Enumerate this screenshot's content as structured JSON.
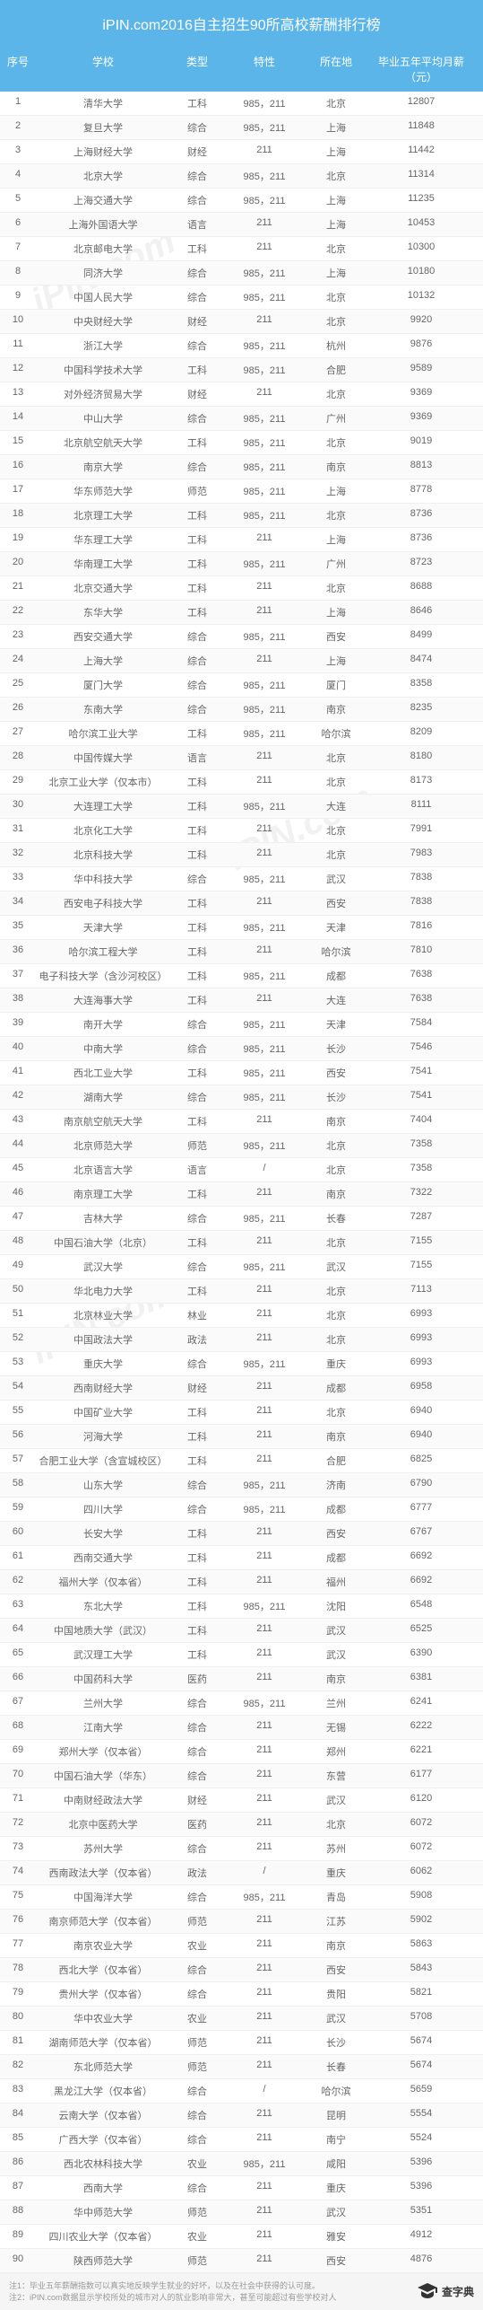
{
  "title": "iPIN.com2016自主招生90所高校薪酬排行榜",
  "watermark_text": "iPIN.com",
  "headers": {
    "rank": "序号",
    "school": "学校",
    "type": "类型",
    "feature": "特性",
    "location": "所在地",
    "salary": "毕业五年平均月薪（元）"
  },
  "footer": {
    "note1": "注1：毕业五年薪酬指数可以真实地反映学生就业的好坏，以及在社会中获得的认可度。",
    "note2": "注2：iPIN.com数据显示学校所处的城市对人的就业影响非常大，甚至可能超过有些学校对人",
    "brand": "查字典",
    "sub": "www.chazidian.com"
  },
  "rows": [
    {
      "r": "1",
      "s": "清华大学",
      "t": "工科",
      "f": "985，211",
      "l": "北京",
      "sal": "12807"
    },
    {
      "r": "2",
      "s": "复旦大学",
      "t": "综合",
      "f": "985，211",
      "l": "上海",
      "sal": "11848"
    },
    {
      "r": "3",
      "s": "上海财经大学",
      "t": "财经",
      "f": "211",
      "l": "上海",
      "sal": "11442"
    },
    {
      "r": "4",
      "s": "北京大学",
      "t": "综合",
      "f": "985，211",
      "l": "北京",
      "sal": "11314"
    },
    {
      "r": "5",
      "s": "上海交通大学",
      "t": "综合",
      "f": "985，211",
      "l": "上海",
      "sal": "11235"
    },
    {
      "r": "6",
      "s": "上海外国语大学",
      "t": "语言",
      "f": "211",
      "l": "上海",
      "sal": "10453"
    },
    {
      "r": "7",
      "s": "北京邮电大学",
      "t": "工科",
      "f": "211",
      "l": "北京",
      "sal": "10300"
    },
    {
      "r": "8",
      "s": "同济大学",
      "t": "综合",
      "f": "985，211",
      "l": "上海",
      "sal": "10180"
    },
    {
      "r": "9",
      "s": "中国人民大学",
      "t": "综合",
      "f": "985，211",
      "l": "北京",
      "sal": "10132"
    },
    {
      "r": "10",
      "s": "中央财经大学",
      "t": "财经",
      "f": "211",
      "l": "北京",
      "sal": "9920"
    },
    {
      "r": "11",
      "s": "浙江大学",
      "t": "综合",
      "f": "985，211",
      "l": "杭州",
      "sal": "9876"
    },
    {
      "r": "12",
      "s": "中国科学技术大学",
      "t": "工科",
      "f": "985，211",
      "l": "合肥",
      "sal": "9589"
    },
    {
      "r": "13",
      "s": "对外经济贸易大学",
      "t": "财经",
      "f": "211",
      "l": "北京",
      "sal": "9369"
    },
    {
      "r": "14",
      "s": "中山大学",
      "t": "综合",
      "f": "985，211",
      "l": "广州",
      "sal": "9369"
    },
    {
      "r": "15",
      "s": "北京航空航天大学",
      "t": "工科",
      "f": "985，211",
      "l": "北京",
      "sal": "9019"
    },
    {
      "r": "16",
      "s": "南京大学",
      "t": "综合",
      "f": "985，211",
      "l": "南京",
      "sal": "8813"
    },
    {
      "r": "17",
      "s": "华东师范大学",
      "t": "师范",
      "f": "985，211",
      "l": "上海",
      "sal": "8778"
    },
    {
      "r": "18",
      "s": "北京理工大学",
      "t": "工科",
      "f": "985，211",
      "l": "北京",
      "sal": "8736"
    },
    {
      "r": "19",
      "s": "华东理工大学",
      "t": "工科",
      "f": "211",
      "l": "上海",
      "sal": "8736"
    },
    {
      "r": "20",
      "s": "华南理工大学",
      "t": "工科",
      "f": "985，211",
      "l": "广州",
      "sal": "8723"
    },
    {
      "r": "21",
      "s": "北京交通大学",
      "t": "工科",
      "f": "211",
      "l": "北京",
      "sal": "8688"
    },
    {
      "r": "22",
      "s": "东华大学",
      "t": "工科",
      "f": "211",
      "l": "上海",
      "sal": "8646"
    },
    {
      "r": "23",
      "s": "西安交通大学",
      "t": "综合",
      "f": "985，211",
      "l": "西安",
      "sal": "8499"
    },
    {
      "r": "24",
      "s": "上海大学",
      "t": "综合",
      "f": "211",
      "l": "上海",
      "sal": "8474"
    },
    {
      "r": "25",
      "s": "厦门大学",
      "t": "综合",
      "f": "985，211",
      "l": "厦门",
      "sal": "8358"
    },
    {
      "r": "26",
      "s": "东南大学",
      "t": "综合",
      "f": "985，211",
      "l": "南京",
      "sal": "8235"
    },
    {
      "r": "27",
      "s": "哈尔滨工业大学",
      "t": "工科",
      "f": "985，211",
      "l": "哈尔滨",
      "sal": "8209"
    },
    {
      "r": "28",
      "s": "中国传媒大学",
      "t": "语言",
      "f": "211",
      "l": "北京",
      "sal": "8180"
    },
    {
      "r": "29",
      "s": "北京工业大学（仅本市）",
      "t": "工科",
      "f": "211",
      "l": "北京",
      "sal": "8173"
    },
    {
      "r": "30",
      "s": "大连理工大学",
      "t": "工科",
      "f": "985，211",
      "l": "大连",
      "sal": "8111"
    },
    {
      "r": "31",
      "s": "北京化工大学",
      "t": "工科",
      "f": "211",
      "l": "北京",
      "sal": "7991"
    },
    {
      "r": "32",
      "s": "北京科技大学",
      "t": "工科",
      "f": "211",
      "l": "北京",
      "sal": "7983"
    },
    {
      "r": "33",
      "s": "华中科技大学",
      "t": "综合",
      "f": "985，211",
      "l": "武汉",
      "sal": "7838"
    },
    {
      "r": "34",
      "s": "西安电子科技大学",
      "t": "工科",
      "f": "211",
      "l": "西安",
      "sal": "7838"
    },
    {
      "r": "35",
      "s": "天津大学",
      "t": "工科",
      "f": "985，211",
      "l": "天津",
      "sal": "7816"
    },
    {
      "r": "36",
      "s": "哈尔滨工程大学",
      "t": "工科",
      "f": "211",
      "l": "哈尔滨",
      "sal": "7810"
    },
    {
      "r": "37",
      "s": "电子科技大学（含沙河校区）",
      "t": "工科",
      "f": "985，211",
      "l": "成都",
      "sal": "7638"
    },
    {
      "r": "38",
      "s": "大连海事大学",
      "t": "工科",
      "f": "211",
      "l": "大连",
      "sal": "7638"
    },
    {
      "r": "39",
      "s": "南开大学",
      "t": "综合",
      "f": "985，211",
      "l": "天津",
      "sal": "7584"
    },
    {
      "r": "40",
      "s": "中南大学",
      "t": "综合",
      "f": "985，211",
      "l": "长沙",
      "sal": "7546"
    },
    {
      "r": "41",
      "s": "西北工业大学",
      "t": "工科",
      "f": "985，211",
      "l": "西安",
      "sal": "7541"
    },
    {
      "r": "42",
      "s": "湖南大学",
      "t": "综合",
      "f": "985，211",
      "l": "长沙",
      "sal": "7541"
    },
    {
      "r": "43",
      "s": "南京航空航天大学",
      "t": "工科",
      "f": "211",
      "l": "南京",
      "sal": "7404"
    },
    {
      "r": "44",
      "s": "北京师范大学",
      "t": "师范",
      "f": "985，211",
      "l": "北京",
      "sal": "7358"
    },
    {
      "r": "45",
      "s": "北京语言大学",
      "t": "语言",
      "f": "/",
      "l": "北京",
      "sal": "7358"
    },
    {
      "r": "46",
      "s": "南京理工大学",
      "t": "工科",
      "f": "211",
      "l": "南京",
      "sal": "7322"
    },
    {
      "r": "47",
      "s": "吉林大学",
      "t": "综合",
      "f": "985，211",
      "l": "长春",
      "sal": "7287"
    },
    {
      "r": "48",
      "s": "中国石油大学（北京）",
      "t": "工科",
      "f": "211",
      "l": "北京",
      "sal": "7155"
    },
    {
      "r": "49",
      "s": "武汉大学",
      "t": "综合",
      "f": "985，211",
      "l": "武汉",
      "sal": "7155"
    },
    {
      "r": "50",
      "s": "华北电力大学",
      "t": "工科",
      "f": "211",
      "l": "北京",
      "sal": "7113"
    },
    {
      "r": "51",
      "s": "北京林业大学",
      "t": "林业",
      "f": "211",
      "l": "北京",
      "sal": "6993"
    },
    {
      "r": "52",
      "s": "中国政法大学",
      "t": "政法",
      "f": "211",
      "l": "北京",
      "sal": "6993"
    },
    {
      "r": "53",
      "s": "重庆大学",
      "t": "综合",
      "f": "985，211",
      "l": "重庆",
      "sal": "6993"
    },
    {
      "r": "54",
      "s": "西南财经大学",
      "t": "财经",
      "f": "211",
      "l": "成都",
      "sal": "6958"
    },
    {
      "r": "55",
      "s": "中国矿业大学",
      "t": "工科",
      "f": "211",
      "l": "北京",
      "sal": "6940"
    },
    {
      "r": "56",
      "s": "河海大学",
      "t": "工科",
      "f": "211",
      "l": "南京",
      "sal": "6940"
    },
    {
      "r": "57",
      "s": "合肥工业大学（含宣城校区）",
      "t": "工科",
      "f": "211",
      "l": "合肥",
      "sal": "6825"
    },
    {
      "r": "58",
      "s": "山东大学",
      "t": "综合",
      "f": "985，211",
      "l": "济南",
      "sal": "6790"
    },
    {
      "r": "59",
      "s": "四川大学",
      "t": "综合",
      "f": "985，211",
      "l": "成都",
      "sal": "6777"
    },
    {
      "r": "60",
      "s": "长安大学",
      "t": "工科",
      "f": "211",
      "l": "西安",
      "sal": "6767"
    },
    {
      "r": "61",
      "s": "西南交通大学",
      "t": "工科",
      "f": "211",
      "l": "成都",
      "sal": "6692"
    },
    {
      "r": "62",
      "s": "福州大学（仅本省）",
      "t": "工科",
      "f": "211",
      "l": "福州",
      "sal": "6692"
    },
    {
      "r": "63",
      "s": "东北大学",
      "t": "工科",
      "f": "985，211",
      "l": "沈阳",
      "sal": "6548"
    },
    {
      "r": "64",
      "s": "中国地质大学（武汉）",
      "t": "工科",
      "f": "211",
      "l": "武汉",
      "sal": "6525"
    },
    {
      "r": "65",
      "s": "武汉理工大学",
      "t": "工科",
      "f": "211",
      "l": "武汉",
      "sal": "6390"
    },
    {
      "r": "66",
      "s": "中国药科大学",
      "t": "医药",
      "f": "211",
      "l": "南京",
      "sal": "6381"
    },
    {
      "r": "67",
      "s": "兰州大学",
      "t": "综合",
      "f": "985，211",
      "l": "兰州",
      "sal": "6241"
    },
    {
      "r": "68",
      "s": "江南大学",
      "t": "综合",
      "f": "211",
      "l": "无锡",
      "sal": "6222"
    },
    {
      "r": "69",
      "s": "郑州大学（仅本省）",
      "t": "综合",
      "f": "211",
      "l": "郑州",
      "sal": "6221"
    },
    {
      "r": "70",
      "s": "中国石油大学（华东）",
      "t": "综合",
      "f": "211",
      "l": "东营",
      "sal": "6177"
    },
    {
      "r": "71",
      "s": "中南财经政法大学",
      "t": "财经",
      "f": "211",
      "l": "武汉",
      "sal": "6120"
    },
    {
      "r": "72",
      "s": "北京中医药大学",
      "t": "医药",
      "f": "211",
      "l": "北京",
      "sal": "6072"
    },
    {
      "r": "73",
      "s": "苏州大学",
      "t": "综合",
      "f": "211",
      "l": "苏州",
      "sal": "6072"
    },
    {
      "r": "74",
      "s": "西南政法大学（仅本省）",
      "t": "政法",
      "f": "/",
      "l": "重庆",
      "sal": "6062"
    },
    {
      "r": "75",
      "s": "中国海洋大学",
      "t": "综合",
      "f": "985，211",
      "l": "青岛",
      "sal": "5908"
    },
    {
      "r": "76",
      "s": "南京师范大学（仅本省）",
      "t": "师范",
      "f": "211",
      "l": "江苏",
      "sal": "5902"
    },
    {
      "r": "77",
      "s": "南京农业大学",
      "t": "农业",
      "f": "211",
      "l": "南京",
      "sal": "5863"
    },
    {
      "r": "78",
      "s": "西北大学（仅本省）",
      "t": "综合",
      "f": "211",
      "l": "西安",
      "sal": "5843"
    },
    {
      "r": "79",
      "s": "贵州大学（仅本省）",
      "t": "综合",
      "f": "211",
      "l": "贵阳",
      "sal": "5821"
    },
    {
      "r": "80",
      "s": "华中农业大学",
      "t": "农业",
      "f": "211",
      "l": "武汉",
      "sal": "5708"
    },
    {
      "r": "81",
      "s": "湖南师范大学（仅本省）",
      "t": "师范",
      "f": "211",
      "l": "长沙",
      "sal": "5674"
    },
    {
      "r": "82",
      "s": "东北师范大学",
      "t": "师范",
      "f": "211",
      "l": "长春",
      "sal": "5674"
    },
    {
      "r": "83",
      "s": "黑龙江大学（仅本省）",
      "t": "综合",
      "f": "/",
      "l": "哈尔滨",
      "sal": "5659"
    },
    {
      "r": "84",
      "s": "云南大学（仅本省）",
      "t": "综合",
      "f": "211",
      "l": "昆明",
      "sal": "5554"
    },
    {
      "r": "85",
      "s": "广西大学（仅本省）",
      "t": "综合",
      "f": "211",
      "l": "南宁",
      "sal": "5524"
    },
    {
      "r": "86",
      "s": "西北农林科技大学",
      "t": "农业",
      "f": "985，211",
      "l": "咸阳",
      "sal": "5396"
    },
    {
      "r": "87",
      "s": "西南大学",
      "t": "综合",
      "f": "211",
      "l": "重庆",
      "sal": "5396"
    },
    {
      "r": "88",
      "s": "华中师范大学",
      "t": "师范",
      "f": "211",
      "l": "武汉",
      "sal": "5351"
    },
    {
      "r": "89",
      "s": "四川农业大学（仅本省）",
      "t": "农业",
      "f": "211",
      "l": "雅安",
      "sal": "4912"
    },
    {
      "r": "90",
      "s": "陕西师范大学",
      "t": "师范",
      "f": "211",
      "l": "西安",
      "sal": "4876"
    }
  ]
}
